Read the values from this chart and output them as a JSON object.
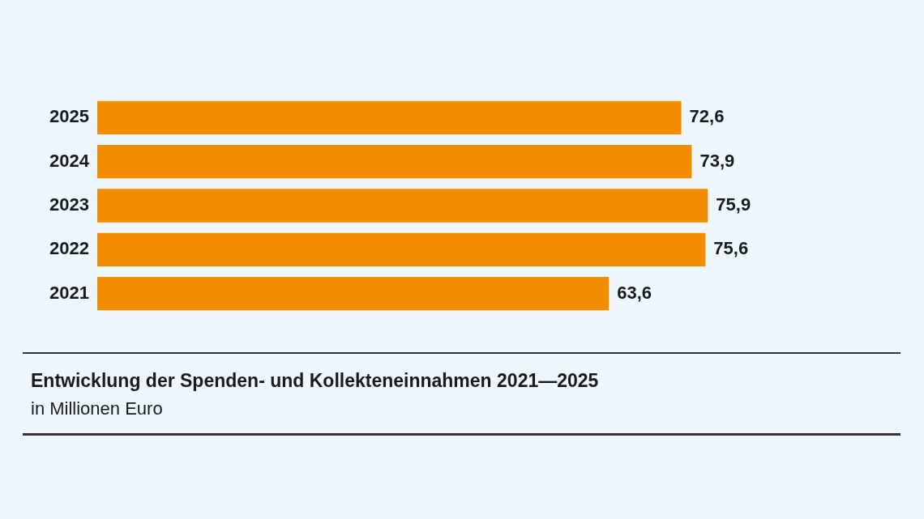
{
  "chart_data": {
    "type": "bar",
    "orientation": "horizontal",
    "title": "Entwicklung der Spenden- und Kollekteneinnahmen 2021—2025",
    "subtitle": "in Millionen Euro",
    "categories": [
      "2025",
      "2024",
      "2023",
      "2022",
      "2021"
    ],
    "values": [
      72.6,
      73.9,
      75.9,
      75.6,
      63.6
    ],
    "color": "#f28c00",
    "value_labels": [
      "72,6",
      "73,9",
      "75,9",
      "75,6",
      "63,6"
    ],
    "grid": false,
    "legend": false
  }
}
